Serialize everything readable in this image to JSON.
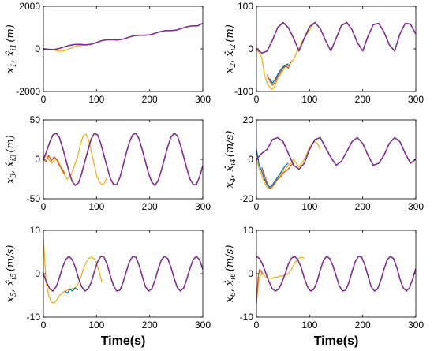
{
  "colors": {
    "true_state": "#7E2F8E",
    "estimate_1": "#EDB120",
    "estimate_2": "#D95319",
    "estimate_3": "#0072BD",
    "axes": "#000000"
  },
  "chart_data": [
    {
      "type": "line",
      "ylabel": "x_1, x̂_i1 (m)",
      "ylabel_parts": {
        "a": "x",
        "a_sub": "1",
        "b": "x̂",
        "b_sub": "i1",
        "unit": "(m)"
      },
      "xlabel": "",
      "xlim": [
        0,
        300
      ],
      "ylim": [
        -2000,
        2000
      ],
      "xticks": [
        0,
        100,
        200,
        300
      ],
      "yticks": [
        -2000,
        0,
        2000
      ],
      "grid": false,
      "series": [
        {
          "color_key": "true_state",
          "x": [
            0,
            10,
            20,
            30,
            40,
            50,
            60,
            70,
            80,
            90,
            100,
            110,
            120,
            130,
            140,
            150,
            160,
            170,
            180,
            190,
            200,
            210,
            220,
            230,
            240,
            250,
            260,
            270,
            280,
            290,
            300
          ],
          "y": [
            0,
            -20,
            -30,
            20,
            100,
            170,
            210,
            210,
            190,
            220,
            300,
            390,
            430,
            430,
            420,
            460,
            540,
            610,
            640,
            640,
            660,
            730,
            810,
            860,
            860,
            880,
            960,
            1040,
            1080,
            1080,
            1200
          ]
        },
        {
          "color_key": "estimate_1",
          "x": [
            0,
            10,
            20,
            30,
            40,
            50,
            60,
            70,
            80,
            90,
            100,
            110,
            120
          ],
          "y": [
            0,
            -20,
            -50,
            -120,
            -90,
            10,
            120,
            160,
            200,
            230,
            290,
            380,
            430
          ]
        }
      ]
    },
    {
      "type": "line",
      "ylabel": "x_2, x̂_i2 (m)",
      "ylabel_parts": {
        "a": "x",
        "a_sub": "2",
        "b": "x̂",
        "b_sub": "i2",
        "unit": "(m)"
      },
      "xlabel": "",
      "xlim": [
        0,
        300
      ],
      "ylim": [
        -100,
        100
      ],
      "xticks": [
        0,
        100,
        200,
        300
      ],
      "yticks": [
        -100,
        0,
        100
      ],
      "grid": false,
      "series": [
        {
          "color_key": "true_state",
          "x": [
            0,
            10,
            20,
            30,
            40,
            50,
            60,
            70,
            80,
            90,
            100,
            110,
            120,
            130,
            140,
            150,
            160,
            170,
            180,
            190,
            200,
            210,
            220,
            230,
            240,
            250,
            260,
            270,
            280,
            290,
            300
          ],
          "y": [
            0,
            -10,
            -5,
            20,
            50,
            62,
            50,
            25,
            -5,
            25,
            52,
            62,
            48,
            20,
            -5,
            25,
            55,
            62,
            45,
            15,
            -5,
            30,
            57,
            60,
            40,
            10,
            -5,
            35,
            60,
            58,
            35
          ]
        },
        {
          "color_key": "estimate_1",
          "x": [
            0,
            5,
            10,
            15,
            20,
            25,
            30,
            35,
            40,
            45,
            50,
            55,
            60,
            65,
            70,
            75,
            80,
            85,
            90,
            95,
            100,
            105,
            110
          ],
          "y": [
            0,
            -10,
            -20,
            -60,
            -80,
            -90,
            -95,
            -85,
            -70,
            -60,
            -50,
            -40,
            -40,
            -30,
            -25,
            -10,
            0,
            15,
            25,
            35,
            45,
            55,
            60
          ]
        },
        {
          "color_key": "estimate_2",
          "x": [
            20,
            25,
            30,
            35,
            40,
            45,
            50,
            55,
            60,
            65
          ],
          "y": [
            -60,
            -75,
            -85,
            -78,
            -65,
            -55,
            -45,
            -40,
            -45,
            -30
          ]
        },
        {
          "color_key": "estimate_3",
          "x": [
            25,
            30,
            35,
            40,
            45,
            50,
            55,
            60
          ],
          "y": [
            -70,
            -80,
            -72,
            -60,
            -50,
            -42,
            -38,
            -35
          ]
        }
      ]
    },
    {
      "type": "line",
      "ylabel": "x_3, x̂_i3 (m)",
      "ylabel_parts": {
        "a": "x",
        "a_sub": "3",
        "b": "x̂",
        "b_sub": "i3",
        "unit": "(m)"
      },
      "xlabel": "",
      "xlim": [
        0,
        300
      ],
      "ylim": [
        -50,
        50
      ],
      "xticks": [
        0,
        100,
        200,
        300
      ],
      "yticks": [
        -50,
        0,
        50
      ],
      "grid": false,
      "series": [
        {
          "color_key": "true_state",
          "x": [
            0,
            6,
            12,
            18,
            24,
            30,
            36,
            42,
            48,
            54,
            60,
            66,
            72,
            78,
            84,
            90,
            96,
            102,
            108,
            114,
            120,
            126,
            132,
            138,
            144,
            150,
            156,
            162,
            168,
            174,
            180,
            186,
            192,
            198,
            204,
            210,
            216,
            222,
            228,
            234,
            240,
            246,
            252,
            258,
            264,
            270,
            276,
            282,
            288,
            294,
            300
          ],
          "y": [
            0,
            10,
            22,
            31,
            33,
            28,
            15,
            0,
            -15,
            -28,
            -33,
            -30,
            -18,
            -3,
            12,
            26,
            33,
            31,
            20,
            5,
            -10,
            -24,
            -32,
            -32,
            -23,
            -8,
            8,
            22,
            31,
            33,
            26,
            12,
            -3,
            -18,
            -29,
            -33,
            -27,
            -14,
            1,
            16,
            28,
            33,
            30,
            18,
            3,
            -12,
            -25,
            -32,
            -32,
            -22,
            -8
          ]
        },
        {
          "color_key": "estimate_1",
          "x": [
            0,
            5,
            10,
            15,
            20,
            25,
            30,
            35,
            40,
            45,
            50,
            55,
            60,
            65,
            70,
            75,
            80,
            85,
            90,
            95,
            100,
            105,
            110,
            115,
            120
          ],
          "y": [
            0,
            5,
            0,
            -5,
            -2,
            0,
            -5,
            -15,
            -20,
            -25,
            -22,
            -15,
            -5,
            5,
            20,
            30,
            32,
            25,
            10,
            -5,
            -20,
            -28,
            -32,
            -30,
            -22
          ]
        },
        {
          "color_key": "estimate_2",
          "x": [
            0,
            5,
            10,
            15,
            20,
            25,
            30,
            35,
            40
          ],
          "y": [
            0,
            -3,
            5,
            -2,
            3,
            0,
            -8,
            -12,
            -18
          ]
        }
      ]
    },
    {
      "type": "line",
      "ylabel": "x_4, x̂_i4 (m/s)",
      "ylabel_parts": {
        "a": "x",
        "a_sub": "4",
        "b": "x̂",
        "b_sub": "i4",
        "unit": "(m/s)"
      },
      "xlabel": "",
      "xlim": [
        0,
        300
      ],
      "ylim": [
        -20,
        20
      ],
      "xticks": [
        0,
        100,
        200,
        300
      ],
      "yticks": [
        -20,
        0,
        20
      ],
      "grid": false,
      "series": [
        {
          "color_key": "true_state",
          "x": [
            0,
            10,
            20,
            30,
            40,
            50,
            60,
            70,
            80,
            90,
            100,
            110,
            120,
            130,
            140,
            150,
            160,
            170,
            180,
            190,
            200,
            210,
            220,
            230,
            240,
            250,
            260,
            270,
            280,
            290,
            300
          ],
          "y": [
            0,
            3,
            5,
            10,
            11,
            9,
            3,
            -3,
            -5,
            -2,
            5,
            10,
            11,
            6,
            1,
            -3,
            -1,
            4,
            9,
            11,
            8,
            2,
            -3,
            -2,
            2,
            8,
            11,
            9,
            3,
            -2,
            0
          ]
        },
        {
          "color_key": "estimate_1",
          "x": [
            0,
            5,
            10,
            15,
            20,
            25,
            30,
            35,
            40,
            45,
            50,
            55,
            60,
            65,
            70,
            75,
            80,
            85,
            90,
            95,
            100,
            105,
            110,
            115,
            120
          ],
          "y": [
            0,
            -5,
            -8,
            -12,
            -14,
            -15,
            -13,
            -12,
            -10,
            -8,
            -6,
            -5,
            -3,
            -2,
            0,
            -2,
            -4,
            -2,
            0,
            3,
            6,
            8,
            9,
            8,
            5
          ]
        },
        {
          "color_key": "estimate_2",
          "x": [
            10,
            15,
            20,
            25,
            30,
            35,
            40,
            45,
            50,
            55,
            60,
            65,
            70
          ],
          "y": [
            -4,
            -8,
            -12,
            -15,
            -14,
            -12,
            -10,
            -9,
            -7,
            -6,
            -5,
            -3,
            -2
          ]
        },
        {
          "color_key": "estimate_3",
          "x": [
            0,
            5,
            10,
            15,
            20,
            25,
            30,
            35,
            40,
            45,
            50,
            55,
            60
          ],
          "y": [
            5,
            -3,
            -6,
            -10,
            -13,
            -14,
            -13,
            -11,
            -9,
            -7,
            -5,
            -3,
            -2
          ]
        }
      ]
    },
    {
      "type": "line",
      "ylabel": "x_5, x̂_i5 (m/s)",
      "ylabel_parts": {
        "a": "x",
        "a_sub": "5",
        "b": "x̂",
        "b_sub": "i5",
        "unit": "(m/s)"
      },
      "xlabel": "Time(s)",
      "xlim": [
        0,
        300
      ],
      "ylim": [
        -10,
        10
      ],
      "xticks": [
        0,
        100,
        200,
        300
      ],
      "yticks": [
        -10,
        0,
        10
      ],
      "grid": false,
      "series": [
        {
          "color_key": "true_state",
          "x": [
            0,
            6,
            12,
            18,
            24,
            30,
            36,
            42,
            48,
            54,
            60,
            66,
            72,
            78,
            84,
            90,
            96,
            102,
            108,
            114,
            120,
            126,
            132,
            138,
            144,
            150,
            156,
            162,
            168,
            174,
            180,
            186,
            192,
            198,
            204,
            210,
            216,
            222,
            228,
            234,
            240,
            246,
            252,
            258,
            264,
            270,
            276,
            282,
            288,
            294,
            300
          ],
          "y": [
            0,
            -2,
            -3.5,
            -4,
            -3,
            -1,
            1.5,
            3.3,
            4,
            3.3,
            1.5,
            -1,
            -3,
            -4,
            -3.5,
            -2,
            0.5,
            2.8,
            4,
            3.8,
            2.2,
            -0.5,
            -2.8,
            -4,
            -3.8,
            -2,
            0.5,
            2.8,
            4,
            3.8,
            2,
            -0.5,
            -3,
            -4,
            -3.5,
            -1.5,
            1,
            3.2,
            4,
            3.5,
            1.5,
            -1,
            -3.2,
            -4,
            -3.3,
            -1.2,
            1.2,
            3.3,
            4,
            3.2,
            1
          ]
        },
        {
          "color_key": "estimate_1",
          "x": [
            0,
            5,
            10,
            15,
            20,
            25,
            30,
            35,
            40,
            45,
            50,
            55,
            60,
            65,
            70,
            75,
            80,
            85,
            90,
            95,
            100,
            105,
            110
          ],
          "y": [
            8,
            -2,
            -5,
            -6.5,
            -6.8,
            -6,
            -5,
            -4.5,
            -4,
            -3.8,
            -3.5,
            -3.5,
            -3.2,
            -2.5,
            -1,
            1,
            2.5,
            3.5,
            3.8,
            3.5,
            2.5,
            0.5,
            -2
          ]
        },
        {
          "color_key": "estimate_3",
          "x": [
            40,
            45,
            50,
            55,
            60,
            65
          ],
          "y": [
            -4,
            -4.5,
            -3.6,
            -4,
            -3.3,
            -3.8
          ]
        }
      ]
    },
    {
      "type": "line",
      "ylabel": "x_6, x̂_i6 (m/s)",
      "ylabel_parts": {
        "a": "x",
        "a_sub": "6",
        "b": "x̂",
        "b_sub": "i6",
        "unit": "(m/s)"
      },
      "xlabel": "Time(s)",
      "xlim": [
        0,
        300
      ],
      "ylim": [
        -10,
        10
      ],
      "xticks": [
        0,
        100,
        200,
        300
      ],
      "yticks": [
        -10,
        0,
        10
      ],
      "grid": false,
      "series": [
        {
          "color_key": "true_state",
          "x": [
            0,
            6,
            12,
            18,
            24,
            30,
            36,
            42,
            48,
            54,
            60,
            66,
            72,
            78,
            84,
            90,
            96,
            102,
            108,
            114,
            120,
            126,
            132,
            138,
            144,
            150,
            156,
            162,
            168,
            174,
            180,
            186,
            192,
            198,
            204,
            210,
            216,
            222,
            228,
            234,
            240,
            246,
            252,
            258,
            264,
            270,
            276,
            282,
            288,
            294,
            300
          ],
          "y": [
            4,
            3.5,
            2,
            0,
            -2,
            -3.5,
            -4,
            -3.5,
            -2,
            0,
            2.2,
            3.6,
            4,
            3.2,
            1.5,
            -1,
            -3,
            -4,
            -3.6,
            -1.8,
            0.8,
            3,
            4,
            3.5,
            1.8,
            -0.5,
            -2.8,
            -4,
            -3.8,
            -2,
            0.5,
            2.8,
            4,
            3.8,
            2,
            -0.5,
            -3,
            -4,
            -3.5,
            -1.5,
            1,
            3.2,
            4,
            3.5,
            1.5,
            -1.2,
            -3.2,
            -4,
            -3.3,
            -1.2,
            1.2
          ]
        },
        {
          "color_key": "estimate_1",
          "x": [
            0,
            5,
            10,
            15,
            20,
            25,
            30,
            35,
            40,
            45,
            50,
            55,
            60,
            65,
            70,
            75,
            80,
            85,
            90
          ],
          "y": [
            -6,
            -1,
            0,
            -0.5,
            -1,
            -1,
            -1,
            -0.8,
            -0.8,
            -0.5,
            -0.5,
            -0.3,
            0,
            0.8,
            2,
            3,
            3.6,
            3.8,
            3.6
          ]
        },
        {
          "color_key": "estimate_2",
          "x": [
            0,
            3,
            6,
            9,
            12
          ],
          "y": [
            -7,
            -1,
            1,
            0.5,
            0
          ]
        }
      ]
    }
  ]
}
